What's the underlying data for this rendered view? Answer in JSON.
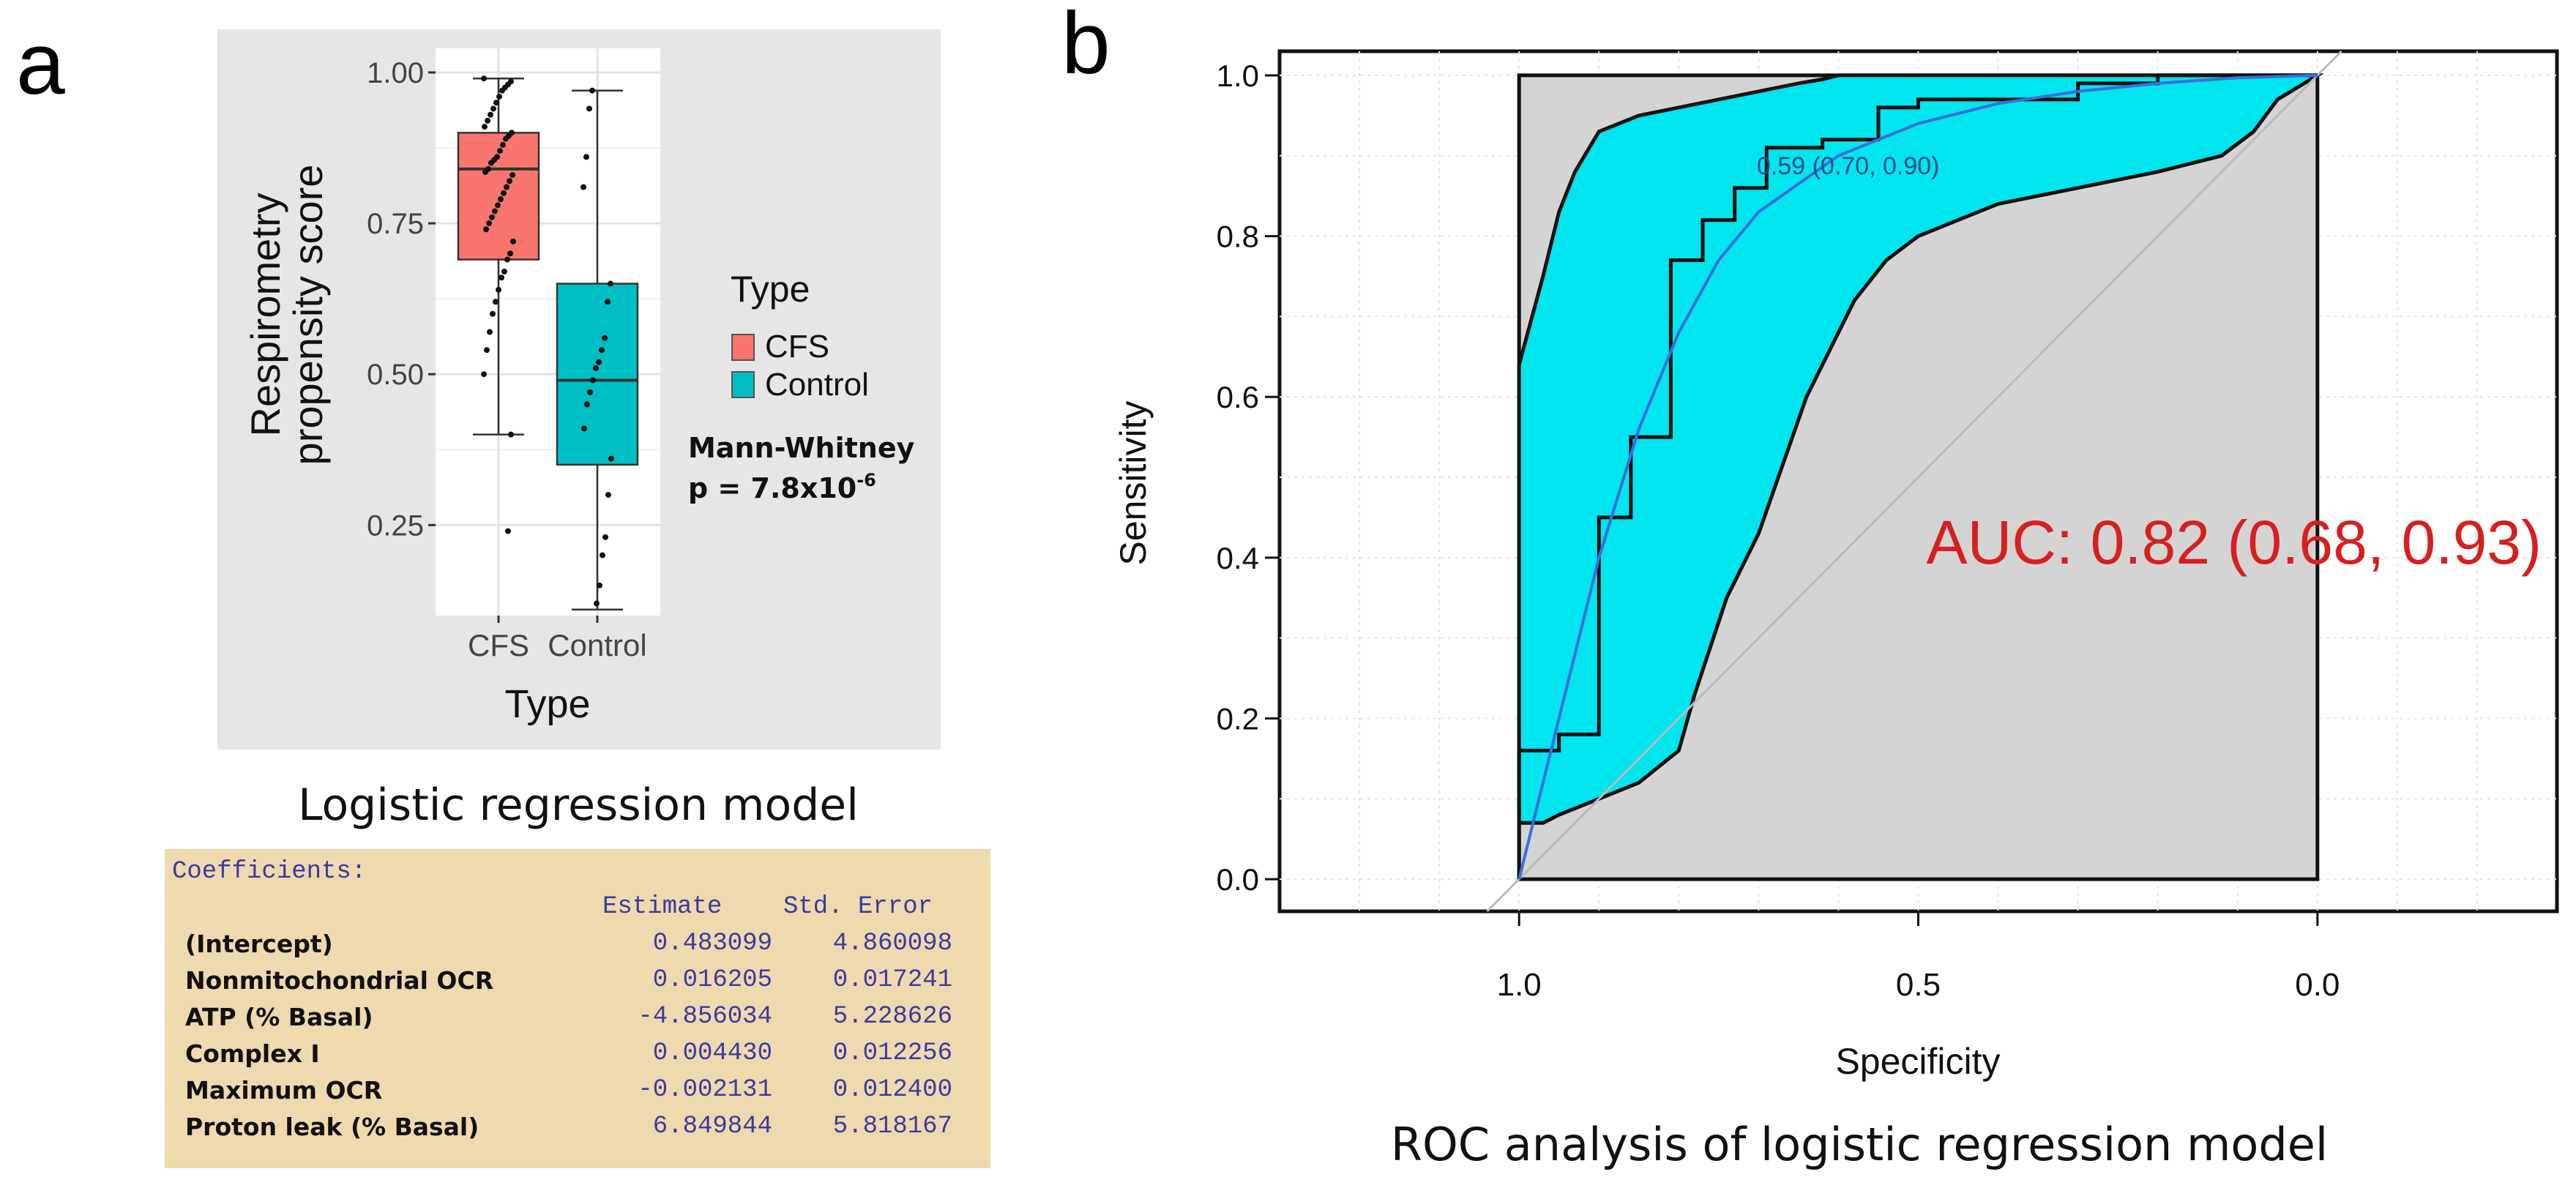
{
  "panel_labels": {
    "a": "a",
    "b": "b"
  },
  "colors": {
    "cfs": "#f8766d",
    "control": "#00bfc4",
    "panel_bg": "#e6e6e6",
    "roc_band": "#00e5ee",
    "auc_text": "#d62020",
    "coef_bg": "#efd9ae",
    "coef_text": "#3a3aa0"
  },
  "chart_data": [
    {
      "type": "box",
      "ylabel": "Respirometry\npropensity score",
      "xlabel": "Type",
      "categories": [
        "CFS",
        "Control"
      ],
      "yticks": [
        0.25,
        0.5,
        0.75,
        1.0
      ],
      "ytick_labels": [
        "0.25",
        "0.50",
        "0.75",
        "1.00"
      ],
      "ylim": [
        0.1,
        1.04
      ],
      "boxes": [
        {
          "name": "CFS",
          "q1": 0.69,
          "median": 0.84,
          "q3": 0.9,
          "whisker_low": 0.4,
          "whisker_high": 0.99,
          "points": [
            0.99,
            0.985,
            0.98,
            0.975,
            0.97,
            0.96,
            0.95,
            0.94,
            0.93,
            0.92,
            0.91,
            0.9,
            0.895,
            0.89,
            0.88,
            0.87,
            0.86,
            0.855,
            0.85,
            0.84,
            0.835,
            0.83,
            0.82,
            0.81,
            0.8,
            0.79,
            0.78,
            0.77,
            0.76,
            0.75,
            0.74,
            0.72,
            0.7,
            0.69,
            0.67,
            0.66,
            0.64,
            0.62,
            0.6,
            0.57,
            0.54,
            0.5,
            0.4,
            0.24
          ]
        },
        {
          "name": "Control",
          "q1": 0.35,
          "median": 0.49,
          "q3": 0.65,
          "whisker_low": 0.11,
          "whisker_high": 0.97,
          "points": [
            0.97,
            0.94,
            0.86,
            0.81,
            0.65,
            0.62,
            0.56,
            0.54,
            0.52,
            0.51,
            0.49,
            0.47,
            0.45,
            0.41,
            0.36,
            0.3,
            0.23,
            0.2,
            0.15,
            0.12
          ]
        }
      ],
      "legend": {
        "title": "Type",
        "items": [
          "CFS",
          "Control"
        ]
      },
      "annotation": {
        "line1": "Mann-Whitney",
        "line2": "p = 7.8x10",
        "exp": "-6"
      }
    },
    {
      "type": "roc",
      "xlabel": "Specificity",
      "ylabel": "Sensitivity",
      "xticks": [
        1.0,
        0.5,
        0.0
      ],
      "xtick_labels": [
        "1.0",
        "0.5",
        "0.0"
      ],
      "yticks": [
        0.0,
        0.2,
        0.4,
        0.6,
        0.8,
        1.0
      ],
      "ytick_labels": [
        "0.0",
        "0.2",
        "0.4",
        "0.6",
        "0.8",
        "1.0"
      ],
      "xlim": [
        1.3,
        -0.3
      ],
      "ylim": [
        -0.04,
        1.03
      ],
      "roc_curve": [
        [
          1.0,
          0.0
        ],
        [
          1.0,
          0.16
        ],
        [
          0.95,
          0.16
        ],
        [
          0.95,
          0.18
        ],
        [
          0.9,
          0.18
        ],
        [
          0.9,
          0.45
        ],
        [
          0.86,
          0.45
        ],
        [
          0.86,
          0.55
        ],
        [
          0.81,
          0.55
        ],
        [
          0.81,
          0.77
        ],
        [
          0.77,
          0.77
        ],
        [
          0.77,
          0.82
        ],
        [
          0.73,
          0.82
        ],
        [
          0.73,
          0.86
        ],
        [
          0.69,
          0.86
        ],
        [
          0.69,
          0.91
        ],
        [
          0.62,
          0.91
        ],
        [
          0.62,
          0.92
        ],
        [
          0.55,
          0.92
        ],
        [
          0.55,
          0.96
        ],
        [
          0.5,
          0.96
        ],
        [
          0.5,
          0.97
        ],
        [
          0.3,
          0.97
        ],
        [
          0.3,
          0.99
        ],
        [
          0.2,
          0.99
        ],
        [
          0.2,
          1.0
        ],
        [
          0.0,
          1.0
        ]
      ],
      "smooth_curve": [
        [
          1.0,
          0.0
        ],
        [
          0.95,
          0.2
        ],
        [
          0.9,
          0.4
        ],
        [
          0.85,
          0.56
        ],
        [
          0.8,
          0.68
        ],
        [
          0.75,
          0.77
        ],
        [
          0.7,
          0.83
        ],
        [
          0.6,
          0.9
        ],
        [
          0.5,
          0.94
        ],
        [
          0.4,
          0.965
        ],
        [
          0.3,
          0.98
        ],
        [
          0.2,
          0.99
        ],
        [
          0.1,
          0.997
        ],
        [
          0.0,
          1.0
        ]
      ],
      "ci_upper": [
        [
          1.0,
          0.64
        ],
        [
          0.97,
          0.75
        ],
        [
          0.95,
          0.83
        ],
        [
          0.93,
          0.88
        ],
        [
          0.9,
          0.93
        ],
        [
          0.85,
          0.95
        ],
        [
          0.8,
          0.96
        ],
        [
          0.75,
          0.97
        ],
        [
          0.7,
          0.98
        ],
        [
          0.65,
          0.99
        ],
        [
          0.62,
          0.995
        ],
        [
          0.6,
          1.0
        ],
        [
          0.0,
          1.0
        ]
      ],
      "ci_lower": [
        [
          1.0,
          0.07
        ],
        [
          0.97,
          0.07
        ],
        [
          0.95,
          0.08
        ],
        [
          0.9,
          0.1
        ],
        [
          0.85,
          0.12
        ],
        [
          0.8,
          0.16
        ],
        [
          0.78,
          0.23
        ],
        [
          0.74,
          0.35
        ],
        [
          0.7,
          0.43
        ],
        [
          0.64,
          0.6
        ],
        [
          0.58,
          0.72
        ],
        [
          0.54,
          0.77
        ],
        [
          0.5,
          0.8
        ],
        [
          0.45,
          0.82
        ],
        [
          0.4,
          0.84
        ],
        [
          0.3,
          0.86
        ],
        [
          0.2,
          0.88
        ],
        [
          0.12,
          0.9
        ],
        [
          0.08,
          0.93
        ],
        [
          0.05,
          0.97
        ],
        [
          0.0,
          1.0
        ]
      ],
      "threshold_point": {
        "label": "0.59 (0.70, 0.90)",
        "specificity": 0.7,
        "sensitivity": 0.9
      },
      "auc_label": "AUC: 0.82 (0.68, 0.93)",
      "title": "ROC analysis of logistic regression model"
    }
  ],
  "logistic": {
    "title": "Logistic regression model",
    "coef_title": "Coefficients:",
    "headers": [
      "Estimate",
      "Std. Error"
    ],
    "rows": [
      {
        "name": "(Intercept)",
        "estimate": "0.483099",
        "se": "4.860098"
      },
      {
        "name": "Nonmitochondrial OCR",
        "estimate": "0.016205",
        "se": "0.017241"
      },
      {
        "name": "ATP (% Basal)",
        "estimate": "-4.856034",
        "se": "5.228626"
      },
      {
        "name": "Complex I",
        "estimate": "0.004430",
        "se": "0.012256"
      },
      {
        "name": "Maximum OCR",
        "estimate": "-0.002131",
        "se": "0.012400"
      },
      {
        "name": "Proton leak (% Basal)",
        "estimate": "6.849844",
        "se": "5.818167"
      }
    ]
  }
}
